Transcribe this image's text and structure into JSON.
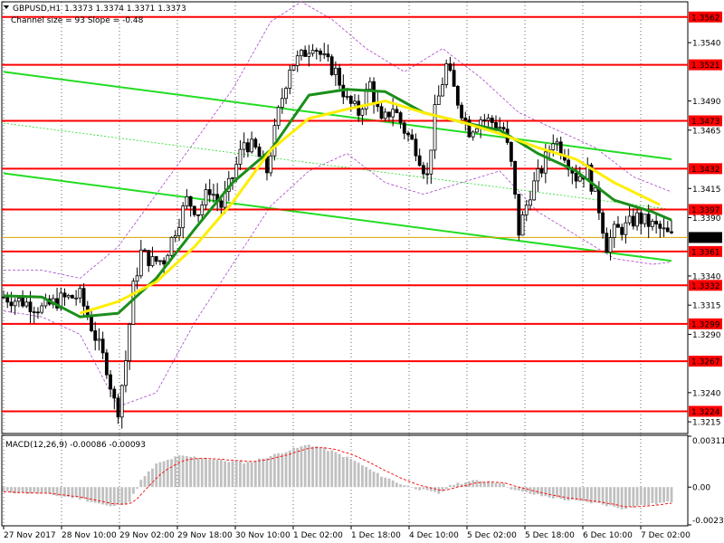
{
  "header": {
    "symbol": "GBPUSD,H1",
    "ohlc": "1.3373 1.3374 1.3371 1.3373",
    "channel_info": "Channel size = 93 Slope = -0.48"
  },
  "macd": {
    "label": "MACD(12,26,9) -0.00086 -0.00093",
    "axis_labels": [
      "0.00311",
      "0.00",
      "-0.00231"
    ],
    "axis_values": [
      0.00311,
      0.0,
      -0.00231
    ],
    "bar_color": "#c0c0c0",
    "signal_color": "#ff0000"
  },
  "price_axis": {
    "ticks": [
      "1.3540",
      "1.3490",
      "1.3465",
      "1.3415",
      "1.3390",
      "1.3340",
      "1.3315",
      "1.3290",
      "1.3240",
      "1.3215"
    ],
    "current_price": "1.3373",
    "current_value": 1.3373
  },
  "levels": [
    {
      "label": "1.3562",
      "value": 1.3562
    },
    {
      "label": "1.3521",
      "value": 1.3521
    },
    {
      "label": "1.3473",
      "value": 1.3473
    },
    {
      "label": "1.3432",
      "value": 1.3432
    },
    {
      "label": "1.3397",
      "value": 1.3397
    },
    {
      "label": "1.3361",
      "value": 1.3361
    },
    {
      "label": "1.3332",
      "value": 1.3332
    },
    {
      "label": "1.3299",
      "value": 1.3299
    },
    {
      "label": "1.3267",
      "value": 1.3267
    },
    {
      "label": "1.3224",
      "value": 1.3224
    }
  ],
  "time_axis": {
    "labels": [
      "27 Nov 2017",
      "28 Nov 10:00",
      "29 Nov 02:00",
      "29 Nov 18:00",
      "30 Nov 10:00",
      "1 Dec 02:00",
      "1 Dec 18:00",
      "4 Dec 10:00",
      "5 Dec 02:00",
      "5 Dec 18:00",
      "6 Dec 10:00",
      "7 Dec 02:00"
    ]
  },
  "colors": {
    "level_line": "#ff0000",
    "channel_line": "#22dd22",
    "ma_fast": "#1a8f1a",
    "ma_slow": "#ffee00",
    "bollinger": "#aa44cc",
    "candle": "#000000",
    "current_price_line": "#d9a000"
  },
  "chart_data": {
    "type": "candlestick",
    "symbol": "GBPUSD,H1",
    "ylim": [
      1.3205,
      1.3575
    ],
    "close_path": [
      [
        0,
        1.3322
      ],
      [
        5,
        1.3318
      ],
      [
        10,
        1.3312
      ],
      [
        15,
        1.332
      ],
      [
        20,
        1.3323
      ],
      [
        24,
        1.3288
      ],
      [
        27,
        1.3262
      ],
      [
        29,
        1.3232
      ],
      [
        30,
        1.3226
      ],
      [
        32,
        1.3268
      ],
      [
        34,
        1.333
      ],
      [
        36,
        1.336
      ],
      [
        39,
        1.3352
      ],
      [
        42,
        1.3354
      ],
      [
        45,
        1.338
      ],
      [
        48,
        1.3405
      ],
      [
        51,
        1.3395
      ],
      [
        54,
        1.3415
      ],
      [
        57,
        1.34
      ],
      [
        60,
        1.3425
      ],
      [
        63,
        1.3455
      ],
      [
        66,
        1.3448
      ],
      [
        69,
        1.343
      ],
      [
        72,
        1.348
      ],
      [
        75,
        1.352
      ],
      [
        78,
        1.3528
      ],
      [
        81,
        1.354
      ],
      [
        84,
        1.3525
      ],
      [
        87,
        1.3515
      ],
      [
        90,
        1.349
      ],
      [
        93,
        1.348
      ],
      [
        96,
        1.3505
      ],
      [
        99,
        1.347
      ],
      [
        102,
        1.3485
      ],
      [
        105,
        1.3465
      ],
      [
        108,
        1.345
      ],
      [
        111,
        1.3425
      ],
      [
        113,
        1.348
      ],
      [
        116,
        1.352
      ],
      [
        119,
        1.349
      ],
      [
        122,
        1.3465
      ],
      [
        125,
        1.3475
      ],
      [
        128,
        1.3472
      ],
      [
        131,
        1.3466
      ],
      [
        133,
        1.3435
      ],
      [
        135,
        1.3378
      ],
      [
        138,
        1.3412
      ],
      [
        141,
        1.3432
      ],
      [
        144,
        1.3458
      ],
      [
        147,
        1.3445
      ],
      [
        150,
        1.3425
      ],
      [
        153,
        1.343
      ],
      [
        156,
        1.3398
      ],
      [
        158,
        1.3366
      ],
      [
        160,
        1.3378
      ],
      [
        163,
        1.3382
      ],
      [
        166,
        1.339
      ],
      [
        169,
        1.3385
      ],
      [
        172,
        1.338
      ],
      [
        175,
        1.3373
      ]
    ],
    "bars_count": 176,
    "moving_averages": [
      {
        "color": "#1a8f1a",
        "points": [
          [
            0,
            1.3323
          ],
          [
            10,
            1.3322
          ],
          [
            20,
            1.3305
          ],
          [
            30,
            1.3308
          ],
          [
            40,
            1.3338
          ],
          [
            50,
            1.338
          ],
          [
            60,
            1.342
          ],
          [
            70,
            1.3448
          ],
          [
            80,
            1.3495
          ],
          [
            90,
            1.35
          ],
          [
            100,
            1.3498
          ],
          [
            110,
            1.348
          ],
          [
            120,
            1.3472
          ],
          [
            130,
            1.3465
          ],
          [
            140,
            1.3445
          ],
          [
            150,
            1.343
          ],
          [
            160,
            1.3405
          ],
          [
            170,
            1.3395
          ],
          [
            175,
            1.3388
          ]
        ]
      },
      {
        "color": "#ffee00",
        "points": [
          [
            20,
            1.3308
          ],
          [
            30,
            1.3318
          ],
          [
            40,
            1.3335
          ],
          [
            50,
            1.3365
          ],
          [
            60,
            1.3403
          ],
          [
            70,
            1.3448
          ],
          [
            80,
            1.3475
          ],
          [
            90,
            1.3483
          ],
          [
            100,
            1.349
          ],
          [
            110,
            1.348
          ],
          [
            120,
            1.3472
          ],
          [
            130,
            1.3462
          ],
          [
            140,
            1.345
          ],
          [
            150,
            1.344
          ],
          [
            160,
            1.342
          ],
          [
            172,
            1.3401
          ]
        ]
      }
    ],
    "bollinger": {
      "upper": [
        [
          0,
          1.3345
        ],
        [
          10,
          1.3345
        ],
        [
          20,
          1.3338
        ],
        [
          30,
          1.3365
        ],
        [
          40,
          1.341
        ],
        [
          50,
          1.3455
        ],
        [
          60,
          1.35
        ],
        [
          70,
          1.3558
        ],
        [
          78,
          1.3575
        ],
        [
          86,
          1.356
        ],
        [
          95,
          1.3535
        ],
        [
          105,
          1.3515
        ],
        [
          115,
          1.3535
        ],
        [
          125,
          1.351
        ],
        [
          135,
          1.348
        ],
        [
          145,
          1.3465
        ],
        [
          155,
          1.345
        ],
        [
          165,
          1.3425
        ],
        [
          175,
          1.3412
        ]
      ],
      "lower": [
        [
          0,
          1.331
        ],
        [
          10,
          1.3305
        ],
        [
          20,
          1.329
        ],
        [
          30,
          1.3228
        ],
        [
          40,
          1.324
        ],
        [
          50,
          1.33
        ],
        [
          60,
          1.335
        ],
        [
          70,
          1.34
        ],
        [
          80,
          1.343
        ],
        [
          90,
          1.3445
        ],
        [
          100,
          1.342
        ],
        [
          110,
          1.341
        ],
        [
          120,
          1.342
        ],
        [
          130,
          1.343
        ],
        [
          140,
          1.3395
        ],
        [
          150,
          1.3375
        ],
        [
          160,
          1.3355
        ],
        [
          170,
          1.335
        ],
        [
          175,
          1.3352
        ]
      ]
    },
    "channel": {
      "upper": [
        [
          0,
          1.3515
        ],
        [
          175,
          1.344
        ]
      ],
      "lower": [
        [
          0,
          1.3428
        ],
        [
          175,
          1.3353
        ]
      ],
      "mid": [
        [
          0,
          1.3471
        ],
        [
          175,
          1.3397
        ]
      ]
    },
    "macd_profile": [
      [
        0,
        -0.0003
      ],
      [
        10,
        -0.0004
      ],
      [
        20,
        -0.0007
      ],
      [
        28,
        -0.0012
      ],
      [
        33,
        -0.0009
      ],
      [
        36,
        0.0004
      ],
      [
        40,
        0.0014
      ],
      [
        46,
        0.0019
      ],
      [
        52,
        0.0018
      ],
      [
        58,
        0.0016
      ],
      [
        64,
        0.0015
      ],
      [
        70,
        0.0019
      ],
      [
        74,
        0.0022
      ],
      [
        80,
        0.0026
      ],
      [
        86,
        0.0022
      ],
      [
        92,
        0.0016
      ],
      [
        98,
        0.0008
      ],
      [
        104,
        0.0002
      ],
      [
        110,
        -0.0002
      ],
      [
        114,
        -0.0004
      ],
      [
        118,
        0.0002
      ],
      [
        124,
        0.0004
      ],
      [
        130,
        0.0003
      ],
      [
        134,
        -0.0002
      ],
      [
        140,
        -0.0005
      ],
      [
        148,
        -0.0008
      ],
      [
        156,
        -0.001
      ],
      [
        162,
        -0.0013
      ],
      [
        168,
        -0.0011
      ],
      [
        175,
        -0.0009
      ]
    ]
  }
}
